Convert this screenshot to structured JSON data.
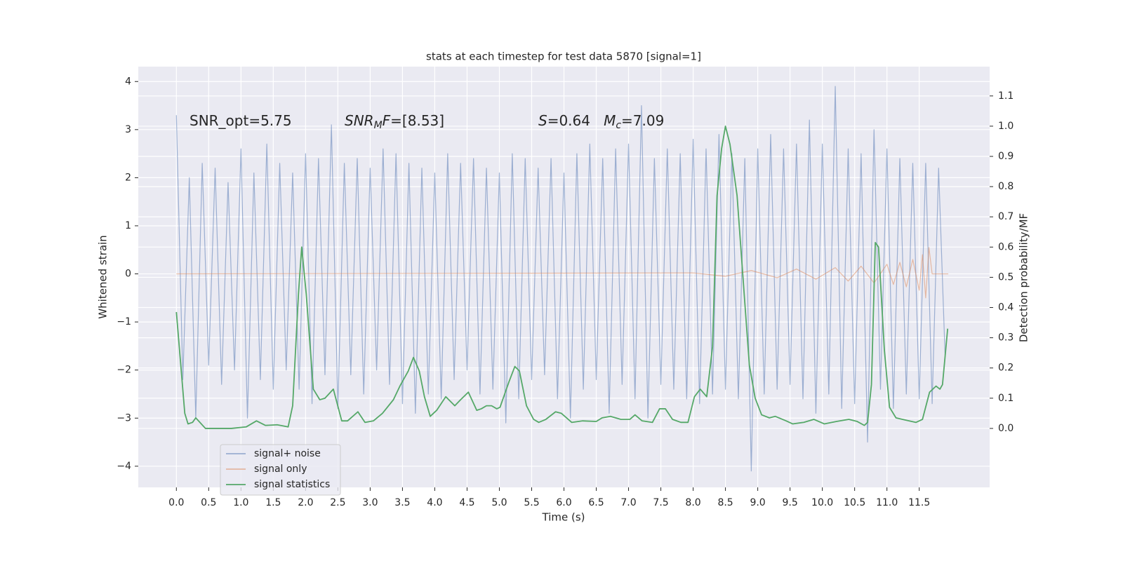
{
  "chart_data": {
    "type": "line",
    "title": "stats at each timestep for test data 5870 [signal=1]",
    "x_label": "Time (s)",
    "y_label": "Whitened strain",
    "y2_label": "Detection probability/MF",
    "background": "#eaeaf2",
    "grid": true,
    "grid_color": "#ffffff",
    "xlim": [
      -0.59,
      12.59
    ],
    "ylim": [
      -4.44,
      4.31
    ],
    "y2lim": [
      -0.195,
      1.197
    ],
    "xticks": [
      {
        "value": 0,
        "label": "0.0"
      },
      0.5,
      {
        "value": 1,
        "label": "1.0"
      },
      1.5,
      {
        "value": 2,
        "label": "2.0"
      },
      2.5,
      {
        "value": 3,
        "label": "3.0"
      },
      3.5,
      {
        "value": 4,
        "label": "4.0"
      },
      4.5,
      {
        "value": 5,
        "label": "5.0"
      },
      5.5,
      {
        "value": 6,
        "label": "6.0"
      },
      6.5,
      {
        "value": 7,
        "label": "7.0"
      },
      7.5,
      {
        "value": 8,
        "label": "8.0"
      },
      8.5,
      {
        "value": 9,
        "label": "9.0"
      },
      9.5,
      {
        "value": 10,
        "label": "10.0"
      },
      10.5,
      {
        "value": 11,
        "label": "11.0"
      },
      11.5
    ],
    "yticks": [
      {
        "value": -4,
        "label": "−4"
      },
      {
        "value": -3,
        "label": "−3"
      },
      {
        "value": -2,
        "label": "−2"
      },
      {
        "value": -1,
        "label": "−1"
      },
      0,
      1,
      2,
      3,
      4
    ],
    "y2ticks": [
      {
        "value": 0,
        "label": "0.0"
      },
      0.1,
      0.2,
      0.3,
      0.4,
      0.5,
      0.6,
      0.7,
      0.8,
      0.9,
      {
        "value": 1,
        "label": "1.0"
      },
      1.1
    ],
    "annotations": [
      {
        "parts": [
          {
            "text": "SNR_opt=5.75"
          }
        ]
      },
      {
        "parts": [
          {
            "text": "SNR",
            "italic": true
          },
          {
            "text": "M",
            "italic": true,
            "sub": true
          },
          {
            "text": "F",
            "italic": true
          },
          {
            "text": "=[8.53]"
          }
        ]
      },
      {
        "parts": [
          {
            "text": "S",
            "italic": true
          },
          {
            "text": "=0.64   "
          },
          {
            "text": "M",
            "italic": true
          },
          {
            "text": "c",
            "italic": true,
            "sub": true
          },
          {
            "text": "=7.09"
          }
        ]
      }
    ],
    "series": [
      {
        "name": "signal+ noise",
        "color": "#4c72b0",
        "alpha": 0.5,
        "x": [
          0.0,
          0.1,
          0.2,
          0.3,
          0.4,
          0.5,
          0.6,
          0.7,
          0.8,
          0.9,
          1.0,
          1.1,
          1.2,
          1.3,
          1.4,
          1.5,
          1.6,
          1.7,
          1.8,
          1.9,
          2.0,
          2.1,
          2.2,
          2.3,
          2.4,
          2.5,
          2.6,
          2.7,
          2.8,
          2.9,
          3.0,
          3.1,
          3.2,
          3.3,
          3.4,
          3.5,
          3.6,
          3.7,
          3.8,
          3.9,
          4.0,
          4.1,
          4.2,
          4.3,
          4.4,
          4.5,
          4.6,
          4.7,
          4.8,
          4.9,
          5.0,
          5.1,
          5.2,
          5.3,
          5.4,
          5.5,
          5.6,
          5.7,
          5.8,
          5.9,
          6.0,
          6.1,
          6.2,
          6.3,
          6.4,
          6.5,
          6.6,
          6.7,
          6.8,
          6.9,
          7.0,
          7.1,
          7.2,
          7.3,
          7.4,
          7.5,
          7.6,
          7.7,
          7.8,
          7.9,
          8.0,
          8.1,
          8.2,
          8.3,
          8.4,
          8.5,
          8.6,
          8.7,
          8.8,
          8.9,
          9.0,
          9.1,
          9.2,
          9.3,
          9.4,
          9.5,
          9.6,
          9.7,
          9.8,
          9.9,
          10.0,
          10.1,
          10.2,
          10.3,
          10.4,
          10.5,
          10.6,
          10.7,
          10.8,
          10.9,
          11.0,
          11.1,
          11.2,
          11.3,
          11.4,
          11.5,
          11.6,
          11.7,
          11.8,
          11.9
        ],
        "values": [
          3.3,
          -2.2,
          2.0,
          -3.0,
          2.3,
          -1.9,
          2.2,
          -2.3,
          1.9,
          -2.0,
          2.6,
          -3.0,
          2.1,
          -2.2,
          2.7,
          -2.4,
          2.3,
          -2.0,
          2.1,
          -2.4,
          2.5,
          -2.7,
          2.4,
          -2.1,
          3.1,
          -2.8,
          2.3,
          -2.1,
          2.4,
          -2.5,
          2.2,
          -2.0,
          2.6,
          -2.3,
          2.5,
          -2.7,
          2.3,
          -2.9,
          2.2,
          -2.5,
          2.1,
          -2.6,
          2.5,
          -2.2,
          2.3,
          -2.0,
          2.4,
          -2.5,
          2.2,
          -2.4,
          2.1,
          -3.1,
          2.5,
          -2.6,
          2.4,
          -2.2,
          2.2,
          -2.1,
          2.4,
          -2.6,
          2.1,
          -3.0,
          2.5,
          -2.4,
          2.7,
          -2.2,
          2.4,
          -2.9,
          2.6,
          -2.3,
          2.7,
          -2.6,
          3.5,
          -3.0,
          2.4,
          -2.3,
          2.6,
          -2.4,
          2.5,
          -2.6,
          2.8,
          -2.7,
          2.6,
          -2.5,
          2.9,
          -2.4,
          2.5,
          -2.6,
          2.4,
          -4.1,
          2.6,
          -2.5,
          2.9,
          -2.4,
          2.6,
          -2.3,
          2.7,
          -2.6,
          3.2,
          -2.9,
          2.7,
          -2.5,
          3.9,
          -2.8,
          2.6,
          -2.7,
          2.5,
          -3.5,
          3.0,
          -2.4,
          2.6,
          -2.8,
          2.4,
          -2.5,
          2.3,
          -2.6,
          2.3,
          -2.7,
          2.2,
          -1.7
        ]
      },
      {
        "name": "signal only",
        "color": "#dd8452",
        "alpha": 0.5,
        "x": [
          0.0,
          8.0,
          8.5,
          8.9,
          9.3,
          9.6,
          9.9,
          10.2,
          10.4,
          10.6,
          10.8,
          11.0,
          11.1,
          11.2,
          11.3,
          11.4,
          11.5,
          11.55,
          11.6,
          11.65,
          11.7,
          11.95
        ],
        "values": [
          0,
          0.02,
          -0.05,
          0.07,
          -0.08,
          0.1,
          -0.11,
          0.13,
          -0.15,
          0.16,
          -0.19,
          0.2,
          -0.22,
          0.24,
          -0.27,
          0.3,
          -0.34,
          0.4,
          -0.5,
          0.55,
          0,
          0
        ]
      },
      {
        "name": "signal statistics",
        "color": "#55a868",
        "alpha": 1,
        "axis": "y2",
        "x": [
          0.0,
          0.13,
          0.18,
          0.25,
          0.3,
          0.45,
          0.65,
          0.85,
          1.08,
          1.24,
          1.38,
          1.56,
          1.73,
          1.8,
          1.89,
          1.94,
          2.01,
          2.12,
          2.22,
          2.3,
          2.43,
          2.56,
          2.65,
          2.81,
          2.92,
          3.05,
          3.19,
          3.36,
          3.46,
          3.59,
          3.67,
          3.76,
          3.84,
          3.93,
          4.03,
          4.17,
          4.31,
          4.4,
          4.52,
          4.65,
          4.72,
          4.8,
          4.88,
          4.96,
          5.01,
          5.15,
          5.24,
          5.31,
          5.42,
          5.53,
          5.61,
          5.72,
          5.87,
          5.96,
          6.12,
          6.29,
          6.5,
          6.59,
          6.72,
          6.88,
          7.02,
          7.1,
          7.21,
          7.37,
          7.48,
          7.57,
          7.68,
          7.81,
          7.92,
          8.02,
          8.11,
          8.21,
          8.3,
          8.37,
          8.44,
          8.5,
          8.57,
          8.68,
          8.79,
          8.87,
          8.96,
          9.06,
          9.18,
          9.27,
          9.44,
          9.54,
          9.71,
          9.87,
          10.03,
          10.22,
          10.41,
          10.54,
          10.65,
          10.7,
          10.76,
          10.82,
          10.87,
          10.96,
          11.04,
          11.14,
          11.28,
          11.45,
          11.55,
          11.66,
          11.76,
          11.82,
          11.86,
          11.94
        ],
        "values": [
          0.385,
          0.05,
          0.015,
          0.02,
          0.035,
          0.0,
          0.0,
          0.0,
          0.005,
          0.025,
          0.01,
          0.012,
          0.005,
          0.075,
          0.445,
          0.6,
          0.445,
          0.13,
          0.095,
          0.1,
          0.13,
          0.025,
          0.025,
          0.055,
          0.02,
          0.025,
          0.05,
          0.095,
          0.14,
          0.19,
          0.235,
          0.19,
          0.105,
          0.04,
          0.06,
          0.105,
          0.075,
          0.095,
          0.12,
          0.06,
          0.065,
          0.075,
          0.075,
          0.065,
          0.07,
          0.155,
          0.205,
          0.19,
          0.075,
          0.03,
          0.02,
          0.03,
          0.055,
          0.05,
          0.02,
          0.025,
          0.023,
          0.035,
          0.04,
          0.03,
          0.03,
          0.045,
          0.025,
          0.02,
          0.065,
          0.065,
          0.03,
          0.02,
          0.02,
          0.105,
          0.13,
          0.105,
          0.27,
          0.77,
          0.925,
          1.0,
          0.94,
          0.77,
          0.445,
          0.21,
          0.1,
          0.045,
          0.035,
          0.04,
          0.025,
          0.015,
          0.02,
          0.03,
          0.015,
          0.023,
          0.03,
          0.023,
          0.01,
          0.02,
          0.145,
          0.615,
          0.6,
          0.26,
          0.07,
          0.035,
          0.028,
          0.02,
          0.03,
          0.12,
          0.14,
          0.13,
          0.145,
          0.33
        ]
      }
    ]
  }
}
